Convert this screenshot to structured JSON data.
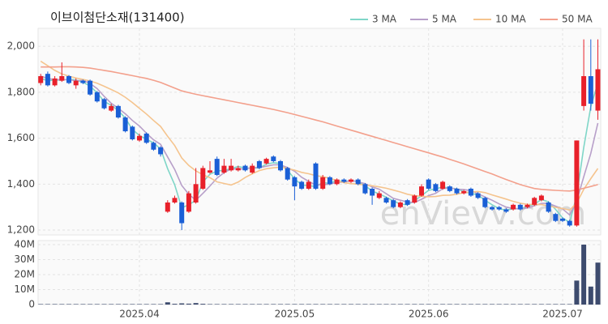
{
  "chart_data": {
    "type": "candlestick",
    "title": "이브이첨단소재(131400)",
    "watermark": "enVievv.com",
    "categories": [
      null,
      null,
      null,
      null,
      null,
      null,
      null,
      null,
      null,
      null,
      null,
      null,
      null,
      null,
      "2025.04",
      null,
      null,
      null,
      null,
      null,
      null,
      null,
      null,
      null,
      null,
      null,
      null,
      null,
      null,
      null,
      null,
      null,
      null,
      null,
      null,
      null,
      "2025.05",
      null,
      null,
      null,
      null,
      null,
      null,
      null,
      null,
      null,
      null,
      null,
      null,
      null,
      null,
      null,
      null,
      null,
      null,
      "2025.06",
      null,
      null,
      null,
      null,
      null,
      null,
      null,
      null,
      null,
      null,
      null,
      null,
      null,
      null,
      null,
      null,
      null,
      null,
      "2025.07",
      null,
      null,
      null,
      null,
      null
    ],
    "open": [
      1840,
      1880,
      1830,
      1850,
      1870,
      1830,
      1850,
      1850,
      1800,
      1770,
      1720,
      1740,
      1690,
      1650,
      1590,
      1620,
      1580,
      1560,
      1280,
      1320,
      1320,
      1280,
      1320,
      1380,
      1450,
      1510,
      1450,
      1460,
      1460,
      1480,
      1450,
      1500,
      1490,
      1520,
      1500,
      1470,
      1430,
      1410,
      1380,
      1490,
      1380,
      1430,
      1400,
      1420,
      1410,
      1420,
      1400,
      1380,
      1340,
      1340,
      1330,
      1300,
      1330,
      1320,
      1350,
      1420,
      1400,
      1380,
      1390,
      1380,
      1360,
      1380,
      1360,
      1340,
      1300,
      1300,
      1290,
      1290,
      1310,
      1300,
      1310,
      1330,
      1320,
      1270,
      1250,
      1240,
      1220,
      1740,
      1870,
      1720
    ],
    "high": [
      1880,
      1890,
      1870,
      1930,
      1875,
      1860,
      1855,
      1855,
      1805,
      1775,
      1750,
      1745,
      1695,
      1655,
      1620,
      1625,
      1585,
      1565,
      1330,
      1350,
      1325,
      1370,
      1470,
      1480,
      1500,
      1520,
      1510,
      1510,
      1480,
      1485,
      1490,
      1505,
      1515,
      1525,
      1505,
      1475,
      1435,
      1415,
      1420,
      1495,
      1440,
      1435,
      1425,
      1425,
      1425,
      1425,
      1405,
      1385,
      1370,
      1345,
      1335,
      1325,
      1335,
      1355,
      1400,
      1425,
      1405,
      1415,
      1395,
      1385,
      1375,
      1385,
      1365,
      1345,
      1305,
      1305,
      1295,
      1315,
      1315,
      1315,
      1345,
      1355,
      1325,
      1275,
      1255,
      1245,
      1590,
      2030,
      2030,
      2030
    ],
    "low": [
      1830,
      1825,
      1825,
      1845,
      1835,
      1815,
      1835,
      1785,
      1755,
      1725,
      1715,
      1685,
      1625,
      1590,
      1585,
      1575,
      1545,
      1520,
      1275,
      1315,
      1200,
      1275,
      1315,
      1375,
      1445,
      1435,
      1445,
      1455,
      1455,
      1455,
      1445,
      1465,
      1485,
      1495,
      1455,
      1415,
      1330,
      1375,
      1375,
      1375,
      1375,
      1395,
      1395,
      1405,
      1405,
      1395,
      1355,
      1310,
      1335,
      1315,
      1295,
      1295,
      1305,
      1315,
      1345,
      1375,
      1365,
      1375,
      1365,
      1355,
      1355,
      1345,
      1335,
      1295,
      1285,
      1285,
      1275,
      1285,
      1285,
      1295,
      1305,
      1325,
      1275,
      1235,
      1235,
      1215,
      1215,
      1720,
      1720,
      1680
    ],
    "close": [
      1870,
      1830,
      1860,
      1870,
      1840,
      1850,
      1840,
      1790,
      1760,
      1730,
      1740,
      1690,
      1630,
      1595,
      1610,
      1580,
      1550,
      1530,
      1320,
      1340,
      1230,
      1360,
      1400,
      1470,
      1460,
      1440,
      1480,
      1480,
      1470,
      1460,
      1480,
      1470,
      1510,
      1500,
      1460,
      1420,
      1390,
      1380,
      1410,
      1380,
      1430,
      1400,
      1420,
      1410,
      1420,
      1400,
      1360,
      1350,
      1360,
      1320,
      1300,
      1320,
      1310,
      1350,
      1390,
      1380,
      1370,
      1410,
      1370,
      1360,
      1370,
      1350,
      1340,
      1300,
      1290,
      1290,
      1280,
      1310,
      1290,
      1310,
      1340,
      1350,
      1280,
      1240,
      1240,
      1220,
      1590,
      1870,
      1750,
      1900
    ],
    "up_color": "#e8202a",
    "down_color": "#1a5fd6",
    "series": [
      {
        "name": "3 MA",
        "color": "#7fd6c8",
        "values": [
          1860,
          1850,
          1853,
          1853,
          1857,
          1853,
          1843,
          1827,
          1797,
          1760,
          1743,
          1720,
          1687,
          1638,
          1612,
          1595,
          1580,
          1553,
          1467,
          1397,
          1297,
          1310,
          1330,
          1410,
          1443,
          1457,
          1460,
          1467,
          1477,
          1470,
          1470,
          1470,
          1487,
          1493,
          1490,
          1460,
          1423,
          1397,
          1393,
          1390,
          1407,
          1403,
          1417,
          1410,
          1417,
          1410,
          1393,
          1370,
          1357,
          1343,
          1327,
          1313,
          1310,
          1327,
          1350,
          1373,
          1380,
          1387,
          1383,
          1380,
          1367,
          1360,
          1353,
          1330,
          1310,
          1293,
          1287,
          1293,
          1293,
          1303,
          1313,
          1333,
          1323,
          1290,
          1253,
          1233,
          1350,
          1560,
          1737,
          1840
        ]
      },
      {
        "name": "5 MA",
        "color": "#b79fc9",
        "values": [
          1870,
          1860,
          1855,
          1855,
          1854,
          1850,
          1852,
          1838,
          1816,
          1782,
          1752,
          1730,
          1706,
          1677,
          1653,
          1621,
          1593,
          1573,
          1518,
          1464,
          1394,
          1356,
          1330,
          1360,
          1392,
          1426,
          1450,
          1466,
          1466,
          1466,
          1472,
          1472,
          1478,
          1484,
          1484,
          1472,
          1456,
          1430,
          1412,
          1396,
          1398,
          1400,
          1408,
          1408,
          1416,
          1410,
          1402,
          1388,
          1378,
          1358,
          1338,
          1330,
          1322,
          1320,
          1334,
          1350,
          1360,
          1380,
          1384,
          1378,
          1376,
          1372,
          1358,
          1344,
          1330,
          1314,
          1300,
          1294,
          1292,
          1296,
          1306,
          1316,
          1316,
          1304,
          1292,
          1266,
          1326,
          1432,
          1534,
          1666
        ]
      },
      {
        "name": "10 MA",
        "color": "#f5c48e",
        "values": [
          1935,
          1915,
          1895,
          1880,
          1870,
          1862,
          1856,
          1849,
          1839,
          1826,
          1812,
          1797,
          1778,
          1755,
          1730,
          1705,
          1677,
          1651,
          1608,
          1568,
          1514,
          1481,
          1458,
          1441,
          1428,
          1410,
          1403,
          1396,
          1409,
          1429,
          1445,
          1459,
          1467,
          1471,
          1474,
          1468,
          1461,
          1451,
          1445,
          1437,
          1432,
          1425,
          1416,
          1406,
          1402,
          1400,
          1396,
          1393,
          1388,
          1382,
          1374,
          1366,
          1356,
          1350,
          1347,
          1345,
          1346,
          1351,
          1352,
          1356,
          1363,
          1366,
          1368,
          1363,
          1353,
          1344,
          1335,
          1325,
          1317,
          1312,
          1311,
          1311,
          1305,
          1299,
          1294,
          1287,
          1318,
          1377,
          1424,
          1468
        ]
      },
      {
        "name": "50 MA",
        "color": "#f3a08c",
        "values": [
          1910,
          1910,
          1910,
          1911,
          1911,
          1910,
          1908,
          1905,
          1900,
          1895,
          1890,
          1884,
          1878,
          1872,
          1866,
          1860,
          1852,
          1843,
          1830,
          1818,
          1806,
          1798,
          1791,
          1785,
          1779,
          1773,
          1767,
          1761,
          1755,
          1749,
          1743,
          1737,
          1731,
          1725,
          1718,
          1711,
          1703,
          1695,
          1687,
          1679,
          1671,
          1662,
          1653,
          1644,
          1635,
          1626,
          1617,
          1608,
          1599,
          1590,
          1581,
          1572,
          1563,
          1554,
          1545,
          1536,
          1527,
          1518,
          1508,
          1498,
          1488,
          1477,
          1466,
          1455,
          1444,
          1432,
          1420,
          1409,
          1398,
          1389,
          1381,
          1377,
          1375,
          1373,
          1371,
          1370,
          1374,
          1382,
          1390,
          1398
        ]
      }
    ],
    "ylim": [
      1179,
      2078
    ],
    "yticks": [
      {
        "value": 1200,
        "label": "1,200"
      },
      {
        "value": 1400,
        "label": "1,400"
      },
      {
        "value": 1600,
        "label": "1,600"
      },
      {
        "value": 1800,
        "label": "1,800"
      },
      {
        "value": 2000,
        "label": "2,000"
      }
    ],
    "grid": true,
    "legend": "top-right",
    "volume": {
      "color": "#3d4b6e",
      "values": [
        300000,
        300000,
        300000,
        300000,
        300000,
        300000,
        300000,
        300000,
        300000,
        300000,
        300000,
        300000,
        300000,
        300000,
        300000,
        300000,
        300000,
        300000,
        1500000,
        500000,
        800000,
        600000,
        1000000,
        500000,
        300000,
        300000,
        300000,
        300000,
        300000,
        300000,
        300000,
        300000,
        300000,
        300000,
        300000,
        300000,
        300000,
        300000,
        300000,
        300000,
        300000,
        300000,
        300000,
        300000,
        300000,
        300000,
        300000,
        300000,
        300000,
        300000,
        300000,
        300000,
        300000,
        300000,
        300000,
        300000,
        300000,
        300000,
        300000,
        300000,
        300000,
        300000,
        300000,
        300000,
        300000,
        300000,
        300000,
        300000,
        300000,
        300000,
        300000,
        300000,
        300000,
        300000,
        300000,
        300000,
        16000000,
        40000000,
        12000000,
        28000000
      ],
      "ylim": [
        0,
        42700000
      ],
      "yticks": [
        0,
        {
          "value": 10000000,
          "label": "10M"
        },
        {
          "value": 20000000,
          "label": "20M"
        },
        {
          "value": 30000000,
          "label": "30M"
        },
        {
          "value": 40000000,
          "label": "40M"
        }
      ]
    }
  }
}
